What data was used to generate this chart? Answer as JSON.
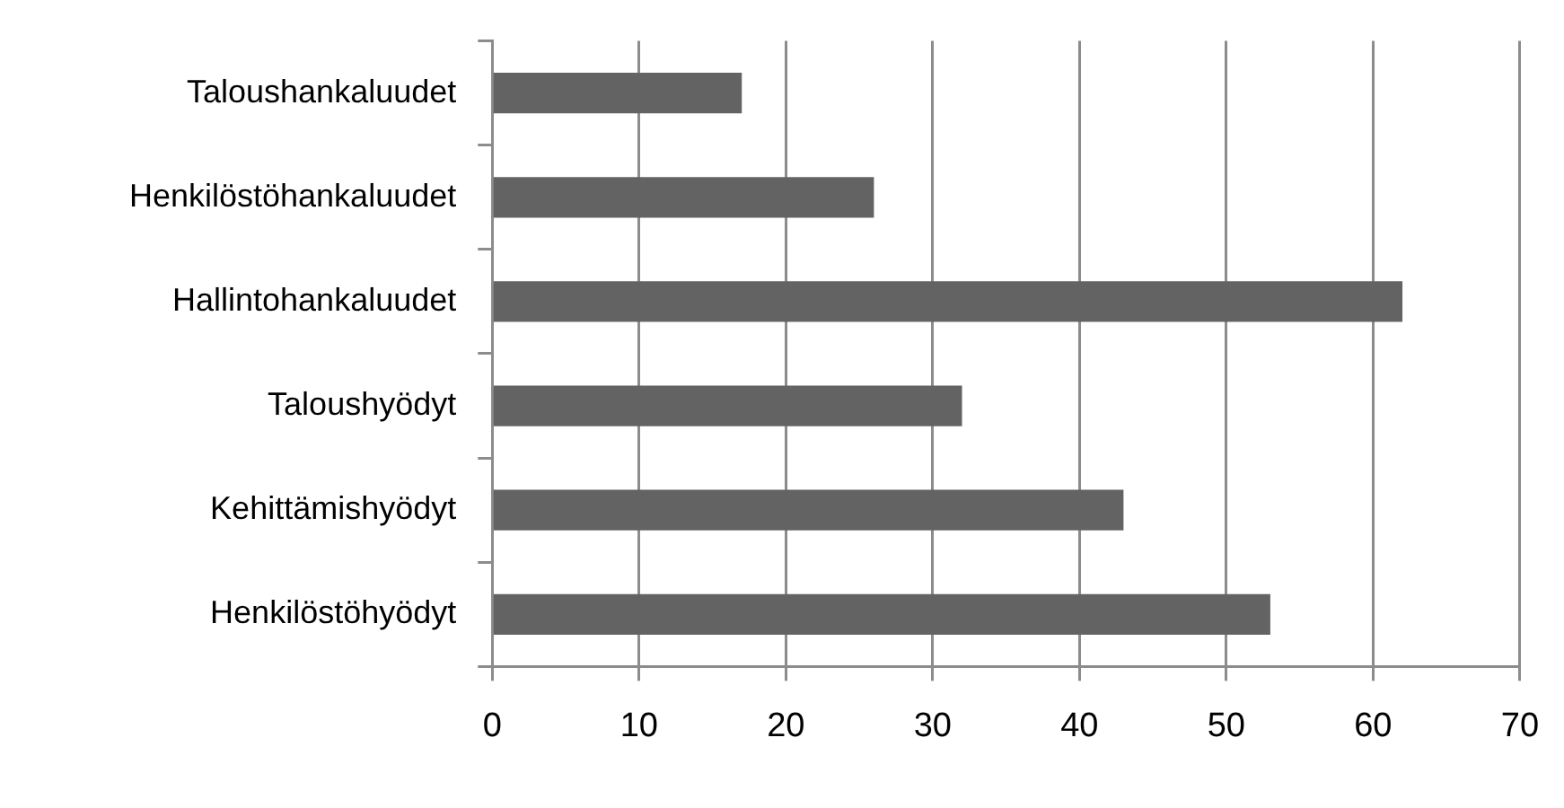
{
  "chart_data": {
    "type": "bar",
    "orientation": "horizontal",
    "categories": [
      "Taloushankaluudet",
      "Henkilöstöhankaluudet",
      "Hallintohankaluudet",
      "Taloushyödyt",
      "Kehittämishyödyt",
      "Henkilöstöhyödyt"
    ],
    "values": [
      17,
      26,
      62,
      32,
      43,
      53
    ],
    "color": "#636363",
    "xlim": [
      0,
      70
    ],
    "xticks": [
      0,
      10,
      20,
      30,
      40,
      50,
      60,
      70
    ],
    "grid": "x",
    "legend": false
  }
}
